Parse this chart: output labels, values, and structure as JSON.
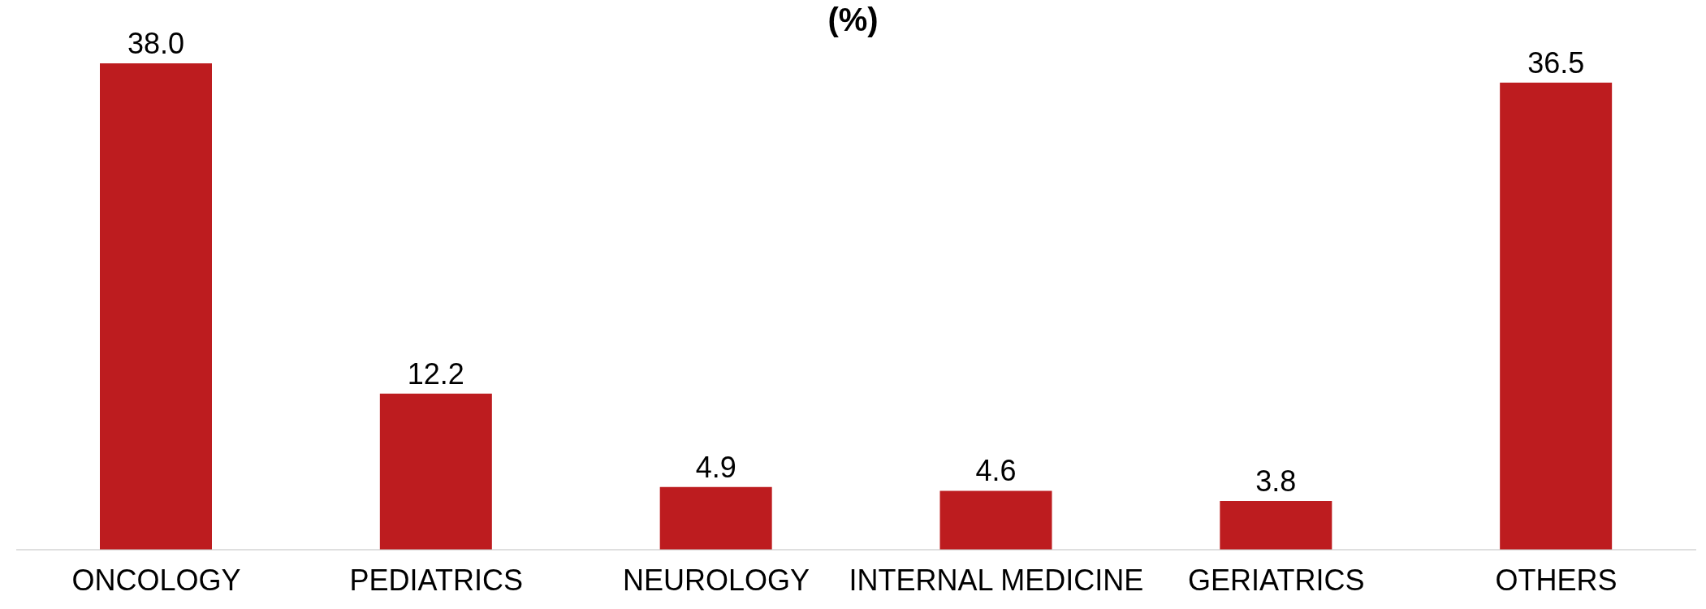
{
  "chart_data": {
    "type": "bar",
    "title": "(%)",
    "categories": [
      "ONCOLOGY",
      "PEDIATRICS",
      "NEUROLOGY",
      "INTERNAL MEDICINE",
      "GERIATRICS",
      "OTHERS"
    ],
    "values": [
      38.0,
      12.2,
      4.9,
      4.6,
      3.8,
      36.5
    ],
    "value_labels": [
      "38.0",
      "12.2",
      "4.9",
      "4.6",
      "3.8",
      "36.5"
    ],
    "color": "#bd1c1f",
    "grid": false,
    "legend": false
  }
}
